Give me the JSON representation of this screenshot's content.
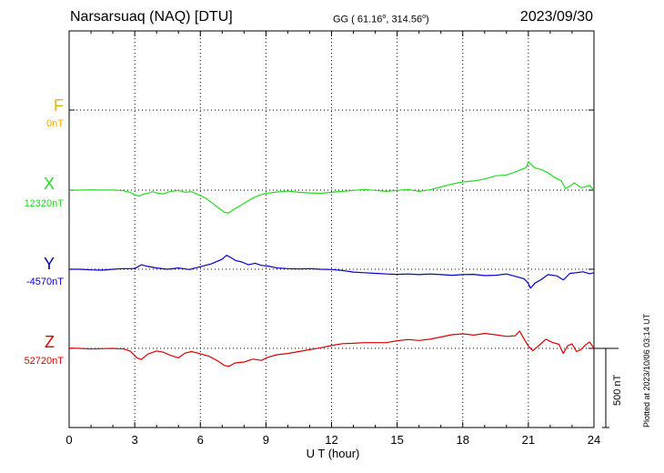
{
  "header": {
    "station": "Narsarsuaq (NAQ)  [DTU]",
    "coords_prefix": "GG ( 61.16",
    "coords_mid": ", 314.56",
    "coords_suffix": ")",
    "degree": "o",
    "date": "2023/09/30"
  },
  "side_note": "Plotted at 2023/10/06 03:14 UT",
  "scale_bar_label": "500 nT",
  "colors": {
    "F": "#f0b000",
    "X": "#22dd22",
    "Y": "#0000cc",
    "Z": "#dd0000",
    "axis": "#000000"
  },
  "chart_data": {
    "type": "line",
    "xlabel": "U T (hour)",
    "xlim": [
      0,
      24
    ],
    "x_ticks": [
      "0",
      "3",
      "6",
      "9",
      "12",
      "15",
      "18",
      "21",
      "24"
    ],
    "scale_nT_per_bar": 500,
    "components": [
      {
        "name": "F",
        "baseline_label": "0nT",
        "baseline": 0,
        "color": "#f0b000",
        "points": []
      },
      {
        "name": "X",
        "baseline_label": "12320nT",
        "baseline": 12320,
        "color": "#22dd22",
        "points": [
          [
            0,
            12318
          ],
          [
            0.5,
            12320
          ],
          [
            1,
            12322
          ],
          [
            1.5,
            12320
          ],
          [
            2,
            12321
          ],
          [
            2.5,
            12316
          ],
          [
            2.8,
            12305
          ],
          [
            3,
            12290
          ],
          [
            3.2,
            12282
          ],
          [
            3.4,
            12294
          ],
          [
            3.6,
            12300
          ],
          [
            3.8,
            12310
          ],
          [
            4,
            12302
          ],
          [
            4.3,
            12296
          ],
          [
            4.6,
            12310
          ],
          [
            5,
            12318
          ],
          [
            5.3,
            12306
          ],
          [
            5.6,
            12310
          ],
          [
            6,
            12286
          ],
          [
            6.3,
            12264
          ],
          [
            6.6,
            12232
          ],
          [
            6.9,
            12200
          ],
          [
            7.1,
            12180
          ],
          [
            7.3,
            12176
          ],
          [
            7.5,
            12196
          ],
          [
            7.8,
            12220
          ],
          [
            8.1,
            12245
          ],
          [
            8.4,
            12270
          ],
          [
            8.7,
            12288
          ],
          [
            9,
            12300
          ],
          [
            9.5,
            12308
          ],
          [
            10,
            12314
          ],
          [
            10.5,
            12306
          ],
          [
            11,
            12302
          ],
          [
            11.5,
            12300
          ],
          [
            12,
            12306
          ],
          [
            12.5,
            12312
          ],
          [
            13,
            12318
          ],
          [
            13.5,
            12324
          ],
          [
            14,
            12318
          ],
          [
            14.5,
            12312
          ],
          [
            15,
            12318
          ],
          [
            15.5,
            12324
          ],
          [
            16,
            12312
          ],
          [
            16.5,
            12322
          ],
          [
            17,
            12340
          ],
          [
            17.5,
            12358
          ],
          [
            18,
            12372
          ],
          [
            18.5,
            12378
          ],
          [
            19,
            12390
          ],
          [
            19.5,
            12410
          ],
          [
            20,
            12416
          ],
          [
            20.3,
            12430
          ],
          [
            20.6,
            12446
          ],
          [
            20.9,
            12462
          ],
          [
            21,
            12500
          ],
          [
            21.1,
            12485
          ],
          [
            21.3,
            12460
          ],
          [
            21.6,
            12450
          ],
          [
            21.9,
            12430
          ],
          [
            22.2,
            12400
          ],
          [
            22.5,
            12380
          ],
          [
            22.7,
            12330
          ],
          [
            22.9,
            12345
          ],
          [
            23.1,
            12366
          ],
          [
            23.4,
            12336
          ],
          [
            23.6,
            12340
          ],
          [
            23.8,
            12350
          ],
          [
            24,
            12320
          ]
        ]
      },
      {
        "name": "Y",
        "baseline_label": "-4570nT",
        "baseline": -4570,
        "color": "#0000cc",
        "points": [
          [
            0,
            -4570
          ],
          [
            0.5,
            -4570
          ],
          [
            1,
            -4574
          ],
          [
            1.5,
            -4576
          ],
          [
            2,
            -4570
          ],
          [
            2.5,
            -4566
          ],
          [
            3,
            -4566
          ],
          [
            3.3,
            -4542
          ],
          [
            3.6,
            -4552
          ],
          [
            4,
            -4562
          ],
          [
            4.5,
            -4570
          ],
          [
            5,
            -4562
          ],
          [
            5.5,
            -4572
          ],
          [
            6,
            -4554
          ],
          [
            6.5,
            -4536
          ],
          [
            7,
            -4506
          ],
          [
            7.2,
            -4482
          ],
          [
            7.4,
            -4496
          ],
          [
            7.6,
            -4514
          ],
          [
            7.9,
            -4524
          ],
          [
            8.2,
            -4542
          ],
          [
            8.5,
            -4532
          ],
          [
            8.8,
            -4546
          ],
          [
            9.1,
            -4550
          ],
          [
            9.5,
            -4562
          ],
          [
            10,
            -4566
          ],
          [
            10.5,
            -4568
          ],
          [
            11,
            -4566
          ],
          [
            11.5,
            -4570
          ],
          [
            12,
            -4572
          ],
          [
            12.5,
            -4578
          ],
          [
            13,
            -4588
          ],
          [
            13.5,
            -4592
          ],
          [
            14,
            -4596
          ],
          [
            14.5,
            -4600
          ],
          [
            15,
            -4602
          ],
          [
            15.5,
            -4600
          ],
          [
            16,
            -4604
          ],
          [
            16.5,
            -4600
          ],
          [
            17,
            -4604
          ],
          [
            17.5,
            -4608
          ],
          [
            18,
            -4604
          ],
          [
            18.5,
            -4602
          ],
          [
            19,
            -4610
          ],
          [
            19.5,
            -4608
          ],
          [
            20,
            -4600
          ],
          [
            20.5,
            -4618
          ],
          [
            20.8,
            -4630
          ],
          [
            21,
            -4660
          ],
          [
            21.1,
            -4690
          ],
          [
            21.3,
            -4658
          ],
          [
            21.6,
            -4634
          ],
          [
            21.9,
            -4604
          ],
          [
            22.3,
            -4612
          ],
          [
            22.6,
            -4638
          ],
          [
            22.9,
            -4596
          ],
          [
            23.2,
            -4592
          ],
          [
            23.5,
            -4586
          ],
          [
            23.8,
            -4598
          ],
          [
            24,
            -4592
          ]
        ]
      },
      {
        "name": "Z",
        "baseline_label": "52720nT",
        "baseline": 52720,
        "color": "#dd0000",
        "points": [
          [
            0,
            52722
          ],
          [
            0.5,
            52720
          ],
          [
            1,
            52716
          ],
          [
            1.5,
            52718
          ],
          [
            2,
            52720
          ],
          [
            2.5,
            52716
          ],
          [
            2.8,
            52702
          ],
          [
            3.1,
            52660
          ],
          [
            3.3,
            52650
          ],
          [
            3.6,
            52684
          ],
          [
            4,
            52704
          ],
          [
            4.3,
            52696
          ],
          [
            4.6,
            52678
          ],
          [
            5,
            52660
          ],
          [
            5.3,
            52690
          ],
          [
            5.6,
            52700
          ],
          [
            6,
            52686
          ],
          [
            6.4,
            52670
          ],
          [
            6.8,
            52640
          ],
          [
            7.1,
            52612
          ],
          [
            7.3,
            52606
          ],
          [
            7.6,
            52628
          ],
          [
            8,
            52634
          ],
          [
            8.4,
            52652
          ],
          [
            8.8,
            52644
          ],
          [
            9.1,
            52664
          ],
          [
            9.5,
            52680
          ],
          [
            10,
            52688
          ],
          [
            10.5,
            52700
          ],
          [
            11,
            52712
          ],
          [
            11.5,
            52724
          ],
          [
            12,
            52738
          ],
          [
            12.5,
            52750
          ],
          [
            13,
            52752
          ],
          [
            13.5,
            52756
          ],
          [
            14,
            52756
          ],
          [
            14.5,
            52756
          ],
          [
            15,
            52768
          ],
          [
            15.5,
            52776
          ],
          [
            16,
            52770
          ],
          [
            16.5,
            52778
          ],
          [
            17,
            52792
          ],
          [
            17.5,
            52806
          ],
          [
            18,
            52812
          ],
          [
            18.5,
            52804
          ],
          [
            19,
            52814
          ],
          [
            19.5,
            52806
          ],
          [
            20,
            52796
          ],
          [
            20.4,
            52800
          ],
          [
            20.6,
            52830
          ],
          [
            20.8,
            52780
          ],
          [
            21,
            52735
          ],
          [
            21.2,
            52705
          ],
          [
            21.5,
            52740
          ],
          [
            21.8,
            52778
          ],
          [
            22.1,
            52758
          ],
          [
            22.4,
            52746
          ],
          [
            22.6,
            52688
          ],
          [
            22.8,
            52738
          ],
          [
            23,
            52748
          ],
          [
            23.2,
            52700
          ],
          [
            23.4,
            52712
          ],
          [
            23.6,
            52740
          ],
          [
            23.8,
            52760
          ],
          [
            24,
            52722
          ]
        ]
      }
    ]
  }
}
